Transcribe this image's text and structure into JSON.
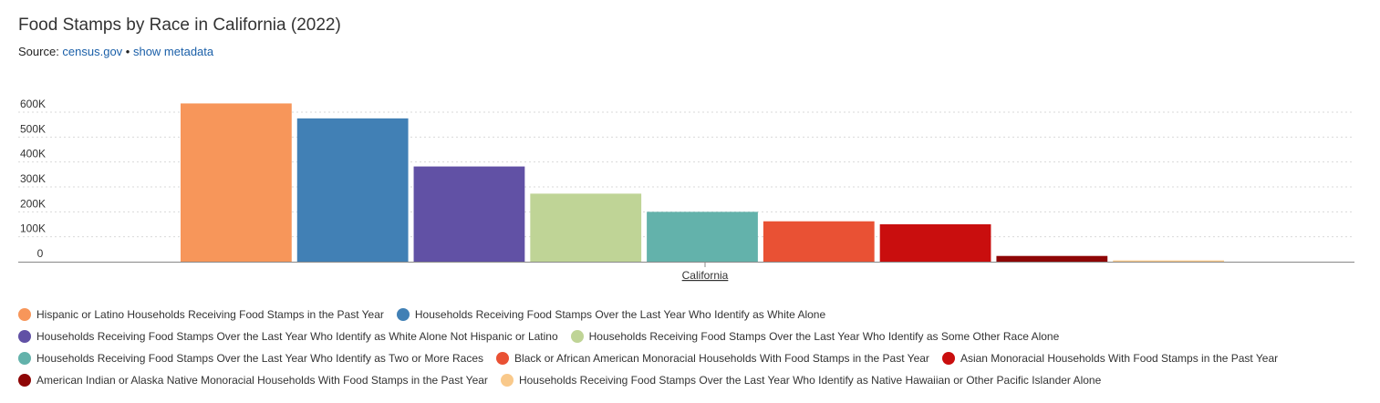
{
  "header": {
    "title": "Food Stamps by Race in California (2022)",
    "source_prefix": "Source: ",
    "source_link": "census.gov",
    "separator": " • ",
    "metadata_link": "show metadata"
  },
  "chart_data": {
    "type": "bar",
    "title": "Food Stamps by Race in California (2022)",
    "categories": [
      "California"
    ],
    "xlabel": "",
    "ylabel": "",
    "ylim": [
      0,
      600000
    ],
    "yticks": [
      0,
      100000,
      200000,
      300000,
      400000,
      500000,
      600000
    ],
    "ytick_labels": [
      "0",
      "100K",
      "200K",
      "300K",
      "400K",
      "500K",
      "600K"
    ],
    "grid": true,
    "legend_position": "bottom",
    "series": [
      {
        "name": "Hispanic or Latino Households Receiving Food Stamps in the Past Year",
        "values": [
          635000
        ],
        "color": "#f7965a"
      },
      {
        "name": "Households Receiving Food Stamps Over the Last Year Who Identify as White Alone",
        "values": [
          575000
        ],
        "color": "#4180b5"
      },
      {
        "name": "Households Receiving Food Stamps Over the Last Year Who Identify as White Alone Not Hispanic or Latino",
        "values": [
          382000
        ],
        "color": "#6151a5"
      },
      {
        "name": "Households Receiving Food Stamps Over the Last Year Who Identify as Some Other Race Alone",
        "values": [
          273000
        ],
        "color": "#bfd496"
      },
      {
        "name": "Households Receiving Food Stamps Over the Last Year Who Identify as Two or More Races",
        "values": [
          200000
        ],
        "color": "#63b2ab"
      },
      {
        "name": "Black or African American Monoracial Households With Food Stamps in the Past Year",
        "values": [
          162000
        ],
        "color": "#e95134"
      },
      {
        "name": "Asian Monoracial Households With Food Stamps in the Past Year",
        "values": [
          150000
        ],
        "color": "#c90e0e"
      },
      {
        "name": "American Indian or Alaska Native Monoracial Households With Food Stamps in the Past Year",
        "values": [
          23000
        ],
        "color": "#8e0606"
      },
      {
        "name": "Households Receiving Food Stamps Over the Last Year Who Identify as Native Hawaiian or Other Pacific Islander Alone",
        "values": [
          5000
        ],
        "color": "#f9c98b"
      }
    ]
  },
  "legend_rows": [
    [
      0,
      1
    ],
    [
      2,
      3
    ],
    [
      4,
      5,
      6
    ],
    [
      7,
      8
    ]
  ]
}
